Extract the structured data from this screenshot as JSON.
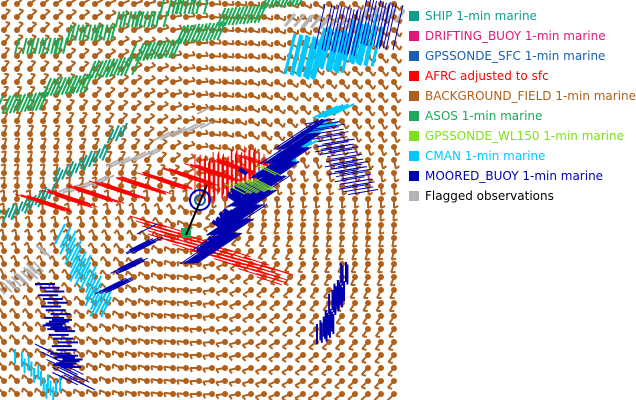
{
  "legend": [
    {
      "label": "SHIP 1-min marine",
      "color": "#0f9e8e"
    },
    {
      "label": "DRIFTING_BUOY 1-min marine",
      "color": "#e0187a"
    },
    {
      "label": "GPSSONDE_SFC 1-min marine",
      "color": "#1a5fb0"
    },
    {
      "label": "AFRC adjusted to sfc",
      "color": "#ff0000"
    },
    {
      "label": "BACKGROUND_FIELD 1-min marine",
      "color": "#b0601a"
    },
    {
      "label": "ASOS 1-min marine",
      "color": "#1aaa5a"
    },
    {
      "label": "GPSSONDE_WL150 1-min marine",
      "color": "#7ee01a"
    },
    {
      "label": "CMAN 1-min marine",
      "color": "#00c8ff"
    },
    {
      "label": "MOORED_BUOY 1-min marine",
      "color": "#0000b0"
    },
    {
      "label": "Flagged observations",
      "color": "#b4b4b4",
      "text_color": "#000000"
    }
  ]
}
